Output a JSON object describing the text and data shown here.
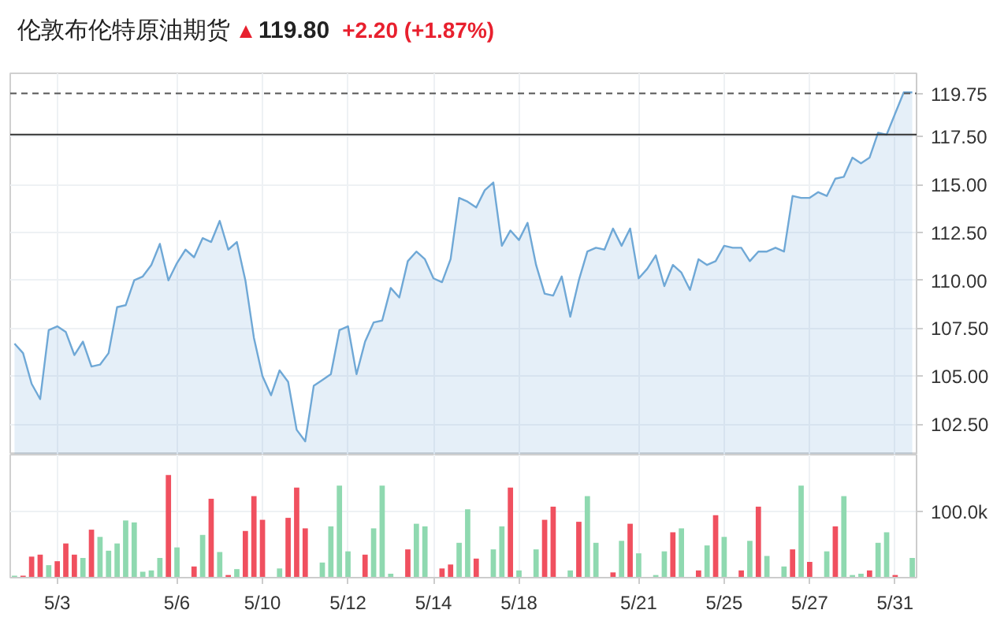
{
  "chart_data": [
    {
      "type": "area",
      "title": "伦敦布伦特原油期货",
      "annotations": [
        "119.80",
        "+2.20 (+1.87%)"
      ],
      "tick_labels": "y",
      "grid": true,
      "categories": [
        null,
        null,
        null,
        null,
        null,
        null,
        null,
        null,
        null,
        null,
        null,
        null,
        null,
        null,
        null,
        null,
        null,
        null,
        null,
        null,
        null,
        null,
        null,
        null,
        null,
        null,
        null,
        null,
        null,
        null,
        null,
        null,
        null,
        null,
        null,
        null,
        null,
        null,
        null,
        null,
        null,
        null,
        null,
        null,
        null,
        null,
        null,
        null,
        null,
        null,
        null,
        null,
        null,
        null,
        null,
        null,
        null,
        null,
        null,
        null,
        null,
        null,
        null,
        null,
        null,
        null,
        null,
        null,
        null,
        null,
        null,
        null,
        null,
        null,
        null,
        null,
        null,
        null,
        null,
        null,
        null,
        null,
        null,
        null,
        null,
        null,
        null,
        null,
        null,
        null,
        null,
        null,
        null,
        null,
        null,
        null,
        null,
        null,
        null,
        null,
        null,
        null,
        null,
        null,
        null,
        null
      ],
      "ylim": [
        100.9,
        120.8
      ],
      "yticks": [
        {
          "value": 102.5,
          "label": "102.50"
        },
        {
          "value": 105,
          "label": "105.00"
        },
        {
          "value": 107.5,
          "label": "107.50"
        },
        {
          "value": 110,
          "label": "110.00"
        },
        {
          "value": 112.5,
          "label": "112.50"
        },
        {
          "value": 115,
          "label": "115.00"
        },
        {
          "value": 117.5,
          "label": "117.50"
        }
      ],
      "ref_lines": [
        {
          "axis": "y",
          "value": 119.75,
          "label": "119.75",
          "color": "#555555",
          "line_style": "dashed"
        },
        {
          "axis": "y",
          "value": 117.6,
          "color": "#333333",
          "line_style": "solid"
        }
      ],
      "series": [
        {
          "color": "#6fa8d6",
          "values": [
            106.7,
            106.2,
            104.6,
            103.8,
            107.4,
            107.6,
            107.3,
            106.1,
            106.8,
            105.5,
            105.6,
            106.2,
            108.6,
            108.7,
            110.0,
            110.2,
            110.8,
            111.9,
            110.0,
            110.9,
            111.6,
            111.2,
            112.2,
            112.0,
            113.1,
            111.6,
            112.0,
            110.0,
            107.0,
            105.0,
            104.0,
            105.3,
            104.7,
            102.2,
            101.6,
            104.5,
            104.8,
            105.1,
            107.4,
            107.6,
            105.1,
            106.8,
            107.8,
            107.9,
            109.6,
            109.1,
            111.0,
            111.5,
            111.1,
            110.1,
            109.9,
            111.1,
            114.3,
            114.1,
            113.8,
            114.7,
            115.1,
            111.8,
            112.6,
            112.1,
            113.0,
            110.8,
            109.3,
            109.2,
            110.2,
            108.1,
            110.0,
            111.5,
            111.7,
            111.6,
            112.7,
            111.8,
            112.7,
            110.1,
            110.6,
            111.3,
            109.7,
            110.8,
            110.4,
            109.5,
            111.1,
            110.8,
            111.0,
            111.8,
            111.7,
            111.7,
            111.0,
            111.5,
            111.5,
            111.7,
            111.5,
            114.4,
            114.3,
            114.3,
            114.6,
            114.4,
            115.3,
            115.4,
            116.4,
            116.1,
            116.4,
            117.7,
            117.6,
            118.7,
            119.8,
            119.8
          ]
        }
      ]
    },
    {
      "type": "bar",
      "grid": true,
      "ylim": [
        0,
        187
      ],
      "categories": [
        null,
        null,
        null,
        null,
        null,
        "5/3",
        null,
        null,
        null,
        null,
        null,
        null,
        null,
        null,
        null,
        null,
        null,
        null,
        null,
        "5/6",
        null,
        null,
        null,
        null,
        null,
        null,
        null,
        null,
        null,
        "5/10",
        null,
        null,
        null,
        null,
        null,
        null,
        null,
        null,
        null,
        "5/12",
        null,
        null,
        null,
        null,
        null,
        null,
        null,
        null,
        null,
        "5/14",
        null,
        null,
        null,
        null,
        null,
        null,
        null,
        null,
        null,
        "5/18",
        null,
        null,
        null,
        null,
        null,
        null,
        null,
        null,
        null,
        null,
        null,
        null,
        null,
        "5/21",
        null,
        null,
        null,
        null,
        null,
        null,
        null,
        null,
        null,
        "5/25",
        null,
        null,
        null,
        null,
        null,
        null,
        null,
        null,
        null,
        "5/27",
        null,
        null,
        null,
        null,
        null,
        null,
        null,
        null,
        null,
        "5/31",
        null,
        null
      ],
      "yticks": [
        {
          "value": 100,
          "label": "100.0k"
        }
      ],
      "series": [
        {
          "values": [
            3,
            3,
            32,
            35,
            19,
            25,
            52,
            35,
            30,
            73,
            62,
            41,
            52,
            87,
            84,
            9,
            11,
            30,
            156,
            46,
            null,
            17,
            65,
            120,
            39,
            4,
            13,
            71,
            124,
            88,
            null,
            14,
            91,
            137,
            75,
            null,
            23,
            78,
            140,
            40,
            null,
            35,
            75,
            140,
            6,
            null,
            43,
            82,
            78,
            null,
            14,
            20,
            53,
            104,
            29,
            null,
            43,
            78,
            137,
            11,
            null,
            43,
            88,
            108,
            null,
            11,
            85,
            124,
            53,
            null,
            8,
            56,
            82,
            37,
            null,
            4,
            40,
            69,
            75,
            null,
            11,
            49,
            95,
            62,
            null,
            11,
            56,
            108,
            33,
            null,
            17,
            43,
            140,
            24,
            null,
            40,
            78,
            124,
            4,
            6,
            11,
            53,
            69,
            4,
            null,
            30
          ],
          "colors": [
            "#8fd9b0",
            "#f0505f",
            "#f0505f",
            "#f0505f",
            "#8fd9b0",
            "#f0505f",
            "#f0505f",
            "#f0505f",
            "#8fd9b0",
            "#f0505f",
            "#8fd9b0",
            "#8fd9b0",
            "#8fd9b0",
            "#8fd9b0",
            "#8fd9b0",
            "#8fd9b0",
            "#8fd9b0",
            "#8fd9b0",
            "#f0505f",
            "#8fd9b0",
            "#8fd9b0",
            "#f0505f",
            "#8fd9b0",
            "#f0505f",
            "#8fd9b0",
            "#f0505f",
            "#8fd9b0",
            "#f0505f",
            "#f0505f",
            "#f0505f",
            "#8fd9b0",
            "#8fd9b0",
            "#f0505f",
            "#f0505f",
            "#f0505f",
            "#8fd9b0",
            "#8fd9b0",
            "#8fd9b0",
            "#8fd9b0",
            "#8fd9b0",
            "#8fd9b0",
            "#f0505f",
            "#8fd9b0",
            "#8fd9b0",
            "#8fd9b0",
            "#8fd9b0",
            "#f0505f",
            "#8fd9b0",
            "#8fd9b0",
            "#8fd9b0",
            "#f0505f",
            "#f0505f",
            "#8fd9b0",
            "#8fd9b0",
            "#f0505f",
            "#8fd9b0",
            "#8fd9b0",
            "#8fd9b0",
            "#f0505f",
            "#8fd9b0",
            "#8fd9b0",
            "#8fd9b0",
            "#f0505f",
            "#f0505f",
            "#8fd9b0",
            "#8fd9b0",
            "#f0505f",
            "#8fd9b0",
            "#8fd9b0",
            "#8fd9b0",
            "#f0505f",
            "#8fd9b0",
            "#f0505f",
            "#8fd9b0",
            "#8fd9b0",
            "#8fd9b0",
            "#8fd9b0",
            "#f0505f",
            "#8fd9b0",
            "#8fd9b0",
            "#f0505f",
            "#8fd9b0",
            "#f0505f",
            "#8fd9b0",
            "#8fd9b0",
            "#f0505f",
            "#8fd9b0",
            "#f0505f",
            "#8fd9b0",
            "#8fd9b0",
            "#8fd9b0",
            "#f0505f",
            "#8fd9b0",
            "#f0505f",
            "#8fd9b0",
            "#8fd9b0",
            "#f0505f",
            "#8fd9b0",
            "#8fd9b0",
            "#8fd9b0",
            "#f0505f",
            "#8fd9b0",
            "#8fd9b0",
            "#f0505f",
            "#8fd9b0",
            "#8fd9b0"
          ]
        }
      ]
    }
  ]
}
